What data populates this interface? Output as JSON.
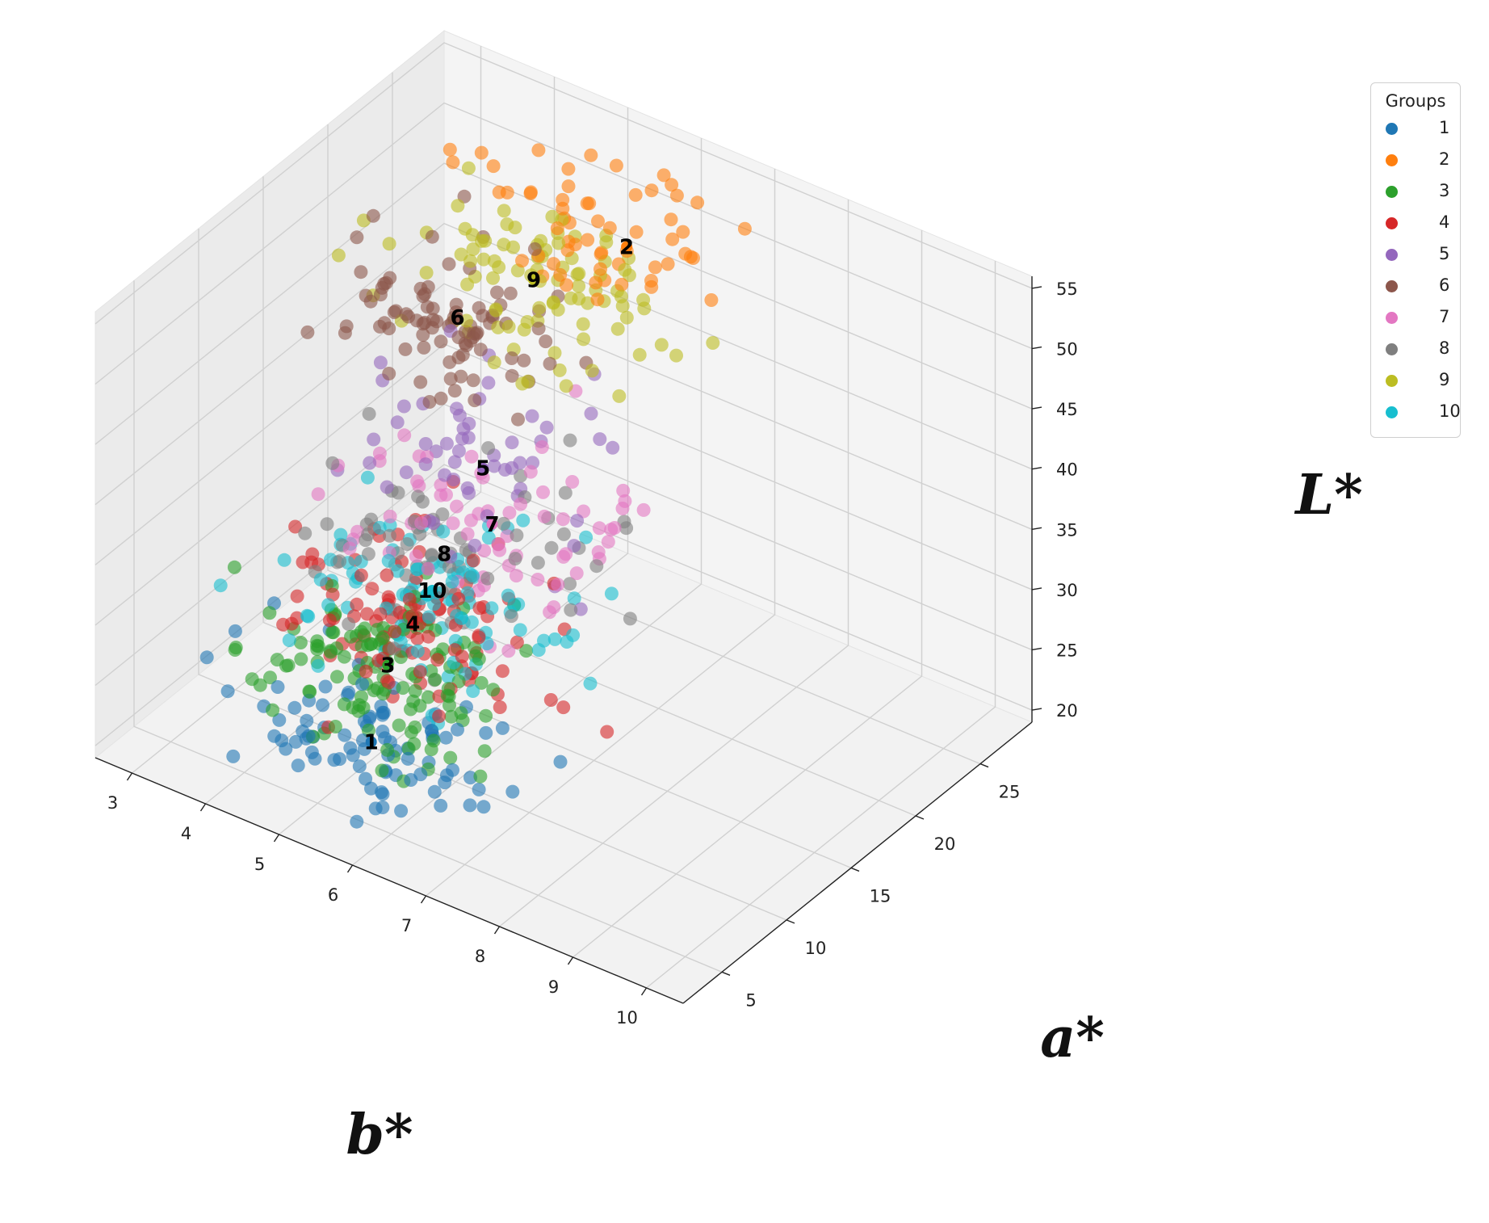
{
  "chart_data": {
    "type": "scatter",
    "projection": "3d",
    "title": "",
    "xlabel": "b*",
    "ylabel": "a*",
    "zlabel": "L*",
    "xlim": [
      2.5,
      10.5
    ],
    "ylim": [
      2.0,
      29.0
    ],
    "zlim": [
      19.0,
      56.0
    ],
    "x_ticks": [
      "3",
      "4",
      "5",
      "6",
      "7",
      "8",
      "9",
      "10"
    ],
    "y_ticks": [
      "5",
      "10",
      "15",
      "20",
      "25"
    ],
    "z_ticks": [
      "20",
      "25",
      "30",
      "35",
      "40",
      "45",
      "50",
      "55"
    ],
    "grid": true,
    "legend": {
      "title": "Groups",
      "placement": "top-right outside"
    },
    "point_alpha": 0.6,
    "series": [
      {
        "name": "1",
        "color": "#1f77b4",
        "center": [
          5.2,
          8.0,
          22.0
        ],
        "spread": [
          0.9,
          2.5,
          1.8
        ],
        "n": 90
      },
      {
        "name": "2",
        "color": "#ff7f0e",
        "center": [
          5.6,
          25.5,
          49.0
        ],
        "spread": [
          0.8,
          2.0,
          2.8
        ],
        "n": 60
      },
      {
        "name": "3",
        "color": "#2ca02c",
        "center": [
          4.9,
          11.0,
          25.0
        ],
        "spread": [
          0.8,
          2.8,
          1.6
        ],
        "n": 130
      },
      {
        "name": "4",
        "color": "#d62728",
        "center": [
          4.8,
          13.5,
          26.0
        ],
        "spread": [
          0.8,
          3.0,
          1.8
        ],
        "n": 110
      },
      {
        "name": "5",
        "color": "#9467bd",
        "center": [
          4.7,
          19.5,
          33.5
        ],
        "spread": [
          0.8,
          2.5,
          2.8
        ],
        "n": 55
      },
      {
        "name": "6",
        "color": "#8c564b",
        "center": [
          4.0,
          21.5,
          42.5
        ],
        "spread": [
          0.6,
          2.2,
          2.6
        ],
        "n": 90
      },
      {
        "name": "7",
        "color": "#e377c2",
        "center": [
          5.0,
          18.5,
          30.5
        ],
        "spread": [
          0.9,
          2.8,
          2.4
        ],
        "n": 70
      },
      {
        "name": "8",
        "color": "#7f7f7f",
        "center": [
          4.7,
          16.5,
          29.0
        ],
        "spread": [
          0.8,
          2.8,
          2.4
        ],
        "n": 70
      },
      {
        "name": "9",
        "color": "#bcbd22",
        "center": [
          4.6,
          24.0,
          45.0
        ],
        "spread": [
          0.8,
          2.4,
          2.8
        ],
        "n": 95
      },
      {
        "name": "10",
        "color": "#17becf",
        "center": [
          4.8,
          15.0,
          27.5
        ],
        "spread": [
          0.8,
          3.0,
          1.8
        ],
        "n": 100
      }
    ]
  }
}
